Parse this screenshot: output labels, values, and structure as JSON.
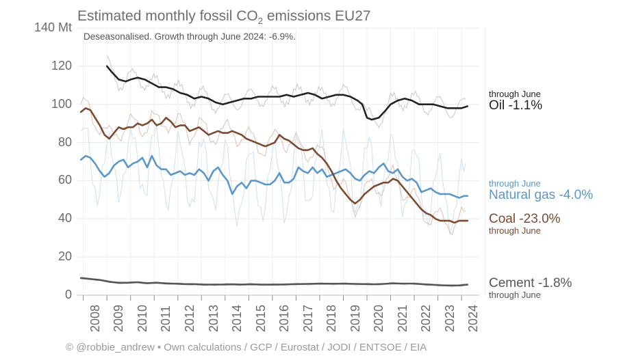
{
  "chart_data": {
    "type": "line",
    "title_main": "Estimated monthly fossil CO",
    "title_sub": "2",
    "title_rest": " emissions EU27",
    "subtitle": "Deseasonalised. Growth through June 2024: -6.9%.",
    "y_ticks": [
      "140 Mt",
      "120",
      "100",
      "80",
      "60",
      "40",
      "20",
      "0"
    ],
    "ylim": [
      0,
      140
    ],
    "xlim": [
      2007.75,
      2024.75
    ],
    "x_ticks": [
      "2008",
      "2009",
      "2010",
      "2011",
      "2012",
      "2013",
      "2014",
      "2015",
      "2016",
      "2017",
      "2018",
      "2019",
      "2020",
      "2021",
      "2022",
      "2023",
      "2024"
    ],
    "grid": true,
    "series": [
      {
        "name": "Oil",
        "change": "-1.1%",
        "note": "through June",
        "color": "#222222",
        "x": [
          2009.0,
          2009.2,
          2009.5,
          2009.8,
          2010.0,
          2010.3,
          2010.6,
          2010.9,
          2011.2,
          2011.5,
          2011.8,
          2012.1,
          2012.4,
          2012.7,
          2013.0,
          2013.3,
          2013.6,
          2013.9,
          2014.2,
          2014.5,
          2014.8,
          2015.1,
          2015.4,
          2015.7,
          2016.0,
          2016.3,
          2016.6,
          2016.9,
          2017.2,
          2017.5,
          2017.8,
          2018.1,
          2018.4,
          2018.7,
          2019.0,
          2019.3,
          2019.6,
          2019.8,
          2020.0,
          2020.2,
          2020.5,
          2020.8,
          2021.0,
          2021.3,
          2021.6,
          2021.9,
          2022.2,
          2022.5,
          2022.8,
          2023.1,
          2023.4,
          2023.7,
          2024.0,
          2024.25
        ],
        "values": [
          120,
          117,
          113,
          112,
          113,
          114,
          113,
          111,
          109,
          109,
          108,
          106,
          105,
          103,
          104,
          103,
          101,
          100,
          101,
          102,
          103,
          103,
          104,
          104,
          104,
          104,
          105,
          104,
          105,
          106,
          105,
          103,
          104,
          105,
          105,
          104,
          102,
          100,
          93,
          92,
          93,
          97,
          100,
          102,
          103,
          102,
          100,
          100,
          100,
          99,
          98,
          98,
          98,
          99
        ]
      },
      {
        "name": "Natural gas",
        "change": "-4.0%",
        "note": "through June",
        "color": "#5b97c8",
        "x": [
          2007.9,
          2008.1,
          2008.3,
          2008.5,
          2008.7,
          2008.9,
          2009.1,
          2009.3,
          2009.5,
          2009.7,
          2009.9,
          2010.1,
          2010.3,
          2010.5,
          2010.7,
          2010.9,
          2011.1,
          2011.3,
          2011.5,
          2011.7,
          2011.9,
          2012.1,
          2012.3,
          2012.5,
          2012.7,
          2012.9,
          2013.1,
          2013.3,
          2013.5,
          2013.7,
          2013.9,
          2014.1,
          2014.3,
          2014.5,
          2014.7,
          2014.9,
          2015.1,
          2015.3,
          2015.5,
          2015.7,
          2015.9,
          2016.1,
          2016.3,
          2016.5,
          2016.7,
          2016.9,
          2017.1,
          2017.3,
          2017.5,
          2017.7,
          2017.9,
          2018.1,
          2018.3,
          2018.5,
          2018.7,
          2018.9,
          2019.1,
          2019.3,
          2019.5,
          2019.7,
          2019.9,
          2020.1,
          2020.3,
          2020.5,
          2020.7,
          2020.9,
          2021.1,
          2021.3,
          2021.5,
          2021.7,
          2021.9,
          2022.1,
          2022.3,
          2022.5,
          2022.7,
          2022.9,
          2023.1,
          2023.3,
          2023.5,
          2023.7,
          2023.9,
          2024.1,
          2024.25
        ],
        "values": [
          71,
          73,
          72,
          69,
          65,
          62,
          64,
          68,
          70,
          71,
          67,
          69,
          70,
          72,
          67,
          73,
          68,
          66,
          66,
          63,
          64,
          65,
          63,
          64,
          63,
          66,
          64,
          60,
          65,
          67,
          63,
          60,
          53,
          57,
          59,
          56,
          60,
          60,
          59,
          58,
          58,
          60,
          64,
          59,
          59,
          61,
          67,
          65,
          64,
          67,
          64,
          66,
          62,
          63,
          64,
          65,
          66,
          64,
          61,
          60,
          63,
          65,
          64,
          67,
          69,
          65,
          64,
          66,
          62,
          60,
          61,
          59,
          54,
          55,
          56,
          54,
          53,
          53,
          53,
          52,
          51,
          52,
          52
        ]
      },
      {
        "name": "Coal",
        "change": "-23.0%",
        "note": "through June",
        "color": "#7b4a30",
        "x": [
          2007.9,
          2008.1,
          2008.3,
          2008.5,
          2008.7,
          2008.9,
          2009.1,
          2009.3,
          2009.5,
          2009.7,
          2009.9,
          2010.1,
          2010.3,
          2010.5,
          2010.7,
          2010.9,
          2011.1,
          2011.3,
          2011.5,
          2011.7,
          2011.9,
          2012.1,
          2012.3,
          2012.5,
          2012.7,
          2012.9,
          2013.1,
          2013.3,
          2013.5,
          2013.7,
          2013.9,
          2014.1,
          2014.3,
          2014.5,
          2014.7,
          2014.9,
          2015.1,
          2015.3,
          2015.5,
          2015.7,
          2015.9,
          2016.1,
          2016.3,
          2016.5,
          2016.7,
          2016.9,
          2017.1,
          2017.3,
          2017.5,
          2017.7,
          2017.9,
          2018.1,
          2018.3,
          2018.5,
          2018.7,
          2018.9,
          2019.1,
          2019.3,
          2019.5,
          2019.7,
          2019.9,
          2020.1,
          2020.3,
          2020.5,
          2020.7,
          2020.9,
          2021.1,
          2021.3,
          2021.5,
          2021.7,
          2021.9,
          2022.1,
          2022.3,
          2022.5,
          2022.7,
          2022.9,
          2023.1,
          2023.3,
          2023.5,
          2023.7,
          2023.9,
          2024.1,
          2024.25
        ],
        "values": [
          96,
          98,
          97,
          93,
          89,
          84,
          82,
          85,
          88,
          87,
          88,
          88,
          90,
          89,
          90,
          92,
          89,
          90,
          93,
          91,
          88,
          89,
          89,
          86,
          87,
          88,
          86,
          84,
          85,
          86,
          85,
          85,
          86,
          85,
          84,
          82,
          81,
          80,
          79,
          78,
          79,
          80,
          84,
          82,
          81,
          79,
          77,
          76,
          76,
          77,
          74,
          72,
          69,
          65,
          60,
          56,
          53,
          50,
          48,
          50,
          53,
          55,
          57,
          58,
          59,
          59,
          61,
          60,
          57,
          54,
          51,
          48,
          45,
          43,
          42,
          40,
          39,
          39,
          39,
          38,
          39,
          39,
          39
        ]
      },
      {
        "name": "Cement",
        "change": "-1.8%",
        "note": "through June",
        "color": "#555555",
        "x": [
          2007.9,
          2008.3,
          2008.7,
          2009.1,
          2009.5,
          2009.9,
          2010.3,
          2010.7,
          2011.1,
          2011.5,
          2011.9,
          2012.3,
          2012.7,
          2013.1,
          2013.5,
          2013.9,
          2014.3,
          2014.7,
          2015.1,
          2015.5,
          2015.9,
          2016.3,
          2016.7,
          2017.1,
          2017.5,
          2017.9,
          2018.3,
          2018.7,
          2019.1,
          2019.5,
          2019.9,
          2020.3,
          2020.7,
          2021.1,
          2021.5,
          2021.9,
          2022.3,
          2022.7,
          2023.1,
          2023.5,
          2023.9,
          2024.25
        ],
        "values": [
          9,
          8.5,
          8,
          7,
          6.5,
          6.5,
          6.8,
          6.3,
          6.5,
          6.2,
          6,
          5.8,
          5.8,
          5.5,
          5.6,
          5.6,
          5.7,
          5.6,
          5.7,
          5.6,
          5.5,
          5.6,
          5.7,
          5.8,
          5.9,
          6,
          6,
          6,
          6,
          5.9,
          5.8,
          5.7,
          5.9,
          6.2,
          6.1,
          6.1,
          5.8,
          5.5,
          5.2,
          5.1,
          5.1,
          5.5
        ]
      }
    ]
  },
  "footer": "© @robbie_andrew  •  Own calculations / GCP / Eurostat / JODI / ENTSOE / EIA"
}
